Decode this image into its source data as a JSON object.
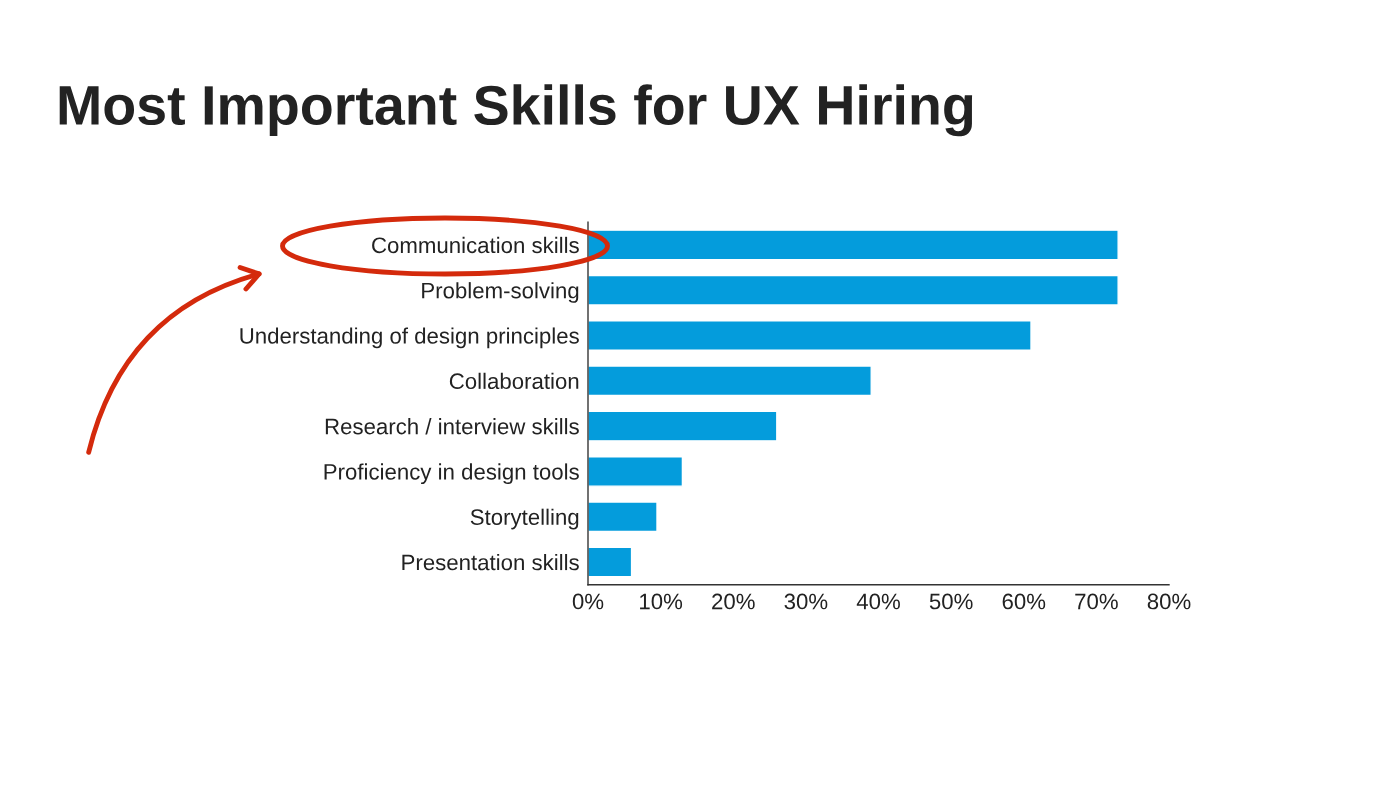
{
  "chart_data": {
    "type": "bar",
    "orientation": "horizontal",
    "title": "Most Important Skills for UX Hiring",
    "categories": [
      "Communication skills",
      "Problem-solving",
      "Understanding of design principles",
      "Collaboration",
      "Research / interview skills",
      "Proficiency in design tools",
      "Storytelling",
      "Presentation skills"
    ],
    "values": [
      73,
      73,
      61,
      39,
      26,
      13,
      9.5,
      6
    ],
    "color": "#049cdc",
    "xlim": [
      0,
      80
    ],
    "xticks": [
      {
        "value": 0,
        "label": "0%"
      },
      {
        "value": 10,
        "label": "10%"
      },
      {
        "value": 20,
        "label": "20%"
      },
      {
        "value": 30,
        "label": "30%"
      },
      {
        "value": 40,
        "label": "40%"
      },
      {
        "value": 50,
        "label": "50%"
      },
      {
        "value": 60,
        "label": "60%"
      },
      {
        "value": 70,
        "label": "70%"
      },
      {
        "value": 80,
        "label": "80%"
      }
    ],
    "grid": false,
    "legend": false
  }
}
